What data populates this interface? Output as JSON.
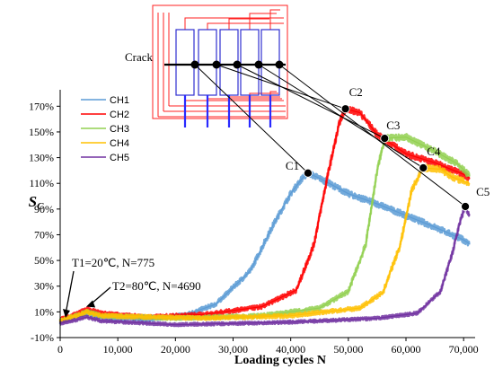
{
  "chart_data": {
    "type": "line",
    "xlabel": "Loading cycles  N",
    "ylabel_main": "S",
    "ylabel_sub": "C",
    "x_ticks": [
      0,
      10000,
      20000,
      30000,
      40000,
      50000,
      60000,
      70000
    ],
    "x_tick_labels": [
      "0",
      "10,000",
      "20,000",
      "30,000",
      "40,000",
      "50,000",
      "60,000",
      "70,000"
    ],
    "xlim": [
      0,
      72000
    ],
    "y_ticks": [
      -10,
      10,
      30,
      50,
      70,
      90,
      110,
      130,
      150,
      170
    ],
    "y_tick_labels": [
      "-10%",
      "10%",
      "30%",
      "50%",
      "70%",
      "90%",
      "110%",
      "130%",
      "150%",
      "170%"
    ],
    "ylim": [
      -10,
      180
    ],
    "legend_position": "top-left",
    "series": [
      {
        "name": "CH1",
        "color": "#5b9bd5",
        "noise": 2.5,
        "points": [
          [
            0,
            2
          ],
          [
            2000,
            6
          ],
          [
            4690,
            9
          ],
          [
            7000,
            6
          ],
          [
            15000,
            4
          ],
          [
            22000,
            8
          ],
          [
            27000,
            16
          ],
          [
            33000,
            42
          ],
          [
            37000,
            78
          ],
          [
            40000,
            102
          ],
          [
            42000,
            114
          ],
          [
            43000,
            118
          ],
          [
            45000,
            114
          ],
          [
            50000,
            102
          ],
          [
            55000,
            94
          ],
          [
            60000,
            85
          ],
          [
            65000,
            76
          ],
          [
            70000,
            66
          ],
          [
            71000,
            63
          ]
        ]
      },
      {
        "name": "CH2",
        "color": "#ff0000",
        "noise": 2.5,
        "points": [
          [
            0,
            4
          ],
          [
            2000,
            7
          ],
          [
            4690,
            12
          ],
          [
            7000,
            9
          ],
          [
            15000,
            6
          ],
          [
            25000,
            8
          ],
          [
            35000,
            14
          ],
          [
            41000,
            27
          ],
          [
            44000,
            62
          ],
          [
            46500,
            118
          ],
          [
            48500,
            158
          ],
          [
            49500,
            168
          ],
          [
            52000,
            165
          ],
          [
            55000,
            148
          ],
          [
            60000,
            133
          ],
          [
            65000,
            126
          ],
          [
            70000,
            117
          ],
          [
            71000,
            114
          ]
        ]
      },
      {
        "name": "CH3",
        "color": "#92d050",
        "noise": 2.5,
        "points": [
          [
            0,
            3
          ],
          [
            2000,
            6
          ],
          [
            4690,
            10
          ],
          [
            7000,
            7
          ],
          [
            20000,
            5
          ],
          [
            35000,
            7
          ],
          [
            45000,
            13
          ],
          [
            50000,
            26
          ],
          [
            53000,
            62
          ],
          [
            55000,
            120
          ],
          [
            56300,
            145
          ],
          [
            60000,
            146
          ],
          [
            65000,
            135
          ],
          [
            69000,
            125
          ],
          [
            71000,
            116
          ]
        ]
      },
      {
        "name": "CH4",
        "color": "#ffc000",
        "noise": 2.5,
        "points": [
          [
            0,
            3
          ],
          [
            2000,
            6
          ],
          [
            4690,
            10
          ],
          [
            7000,
            7
          ],
          [
            25000,
            5
          ],
          [
            40000,
            7
          ],
          [
            52000,
            13
          ],
          [
            56000,
            25
          ],
          [
            59000,
            62
          ],
          [
            61000,
            105
          ],
          [
            63000,
            122
          ],
          [
            66000,
            121
          ],
          [
            68000,
            115
          ],
          [
            71000,
            110
          ]
        ]
      },
      {
        "name": "CH5",
        "color": "#7030a0",
        "noise": 2.0,
        "points": [
          [
            0,
            1
          ],
          [
            2000,
            3
          ],
          [
            4690,
            6
          ],
          [
            7000,
            3
          ],
          [
            20000,
            0
          ],
          [
            40000,
            2
          ],
          [
            55000,
            5
          ],
          [
            62000,
            9
          ],
          [
            66000,
            26
          ],
          [
            68000,
            55
          ],
          [
            69500,
            82
          ],
          [
            70300,
            92
          ],
          [
            71000,
            85
          ]
        ]
      }
    ],
    "markers": [
      {
        "label": "C1",
        "x": 43000,
        "y": 118
      },
      {
        "label": "C2",
        "x": 49500,
        "y": 168
      },
      {
        "label": "C3",
        "x": 56300,
        "y": 145
      },
      {
        "label": "C4",
        "x": 63000,
        "y": 122
      },
      {
        "label": "C5",
        "x": 70300,
        "y": 92
      }
    ],
    "annotations": [
      {
        "text": "T1=20℃, N=775",
        "x": 775,
        "y": 4
      },
      {
        "text": "T2=80℃, N=4690",
        "x": 4690,
        "y": 12
      }
    ],
    "inset_label": "Crack"
  }
}
